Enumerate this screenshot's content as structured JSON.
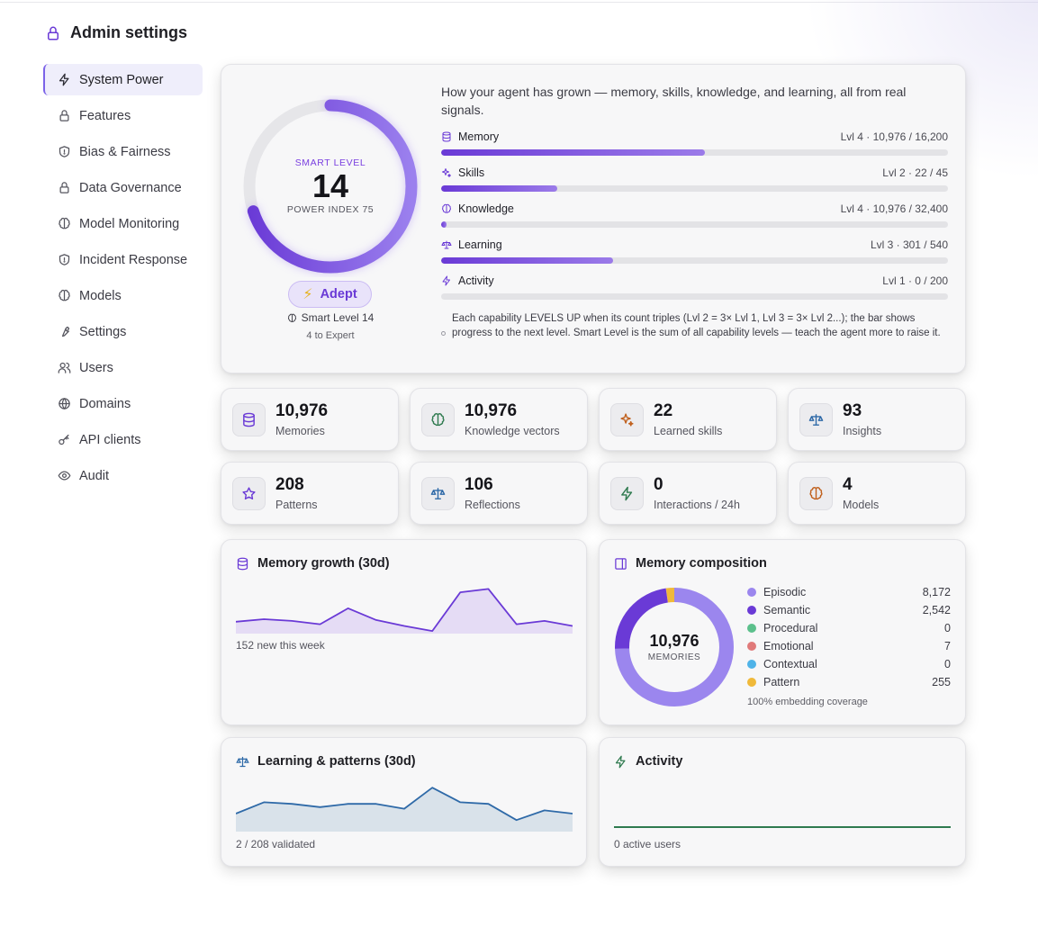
{
  "page": {
    "title": "Admin settings"
  },
  "sidebar": {
    "items": [
      {
        "label": "System Power",
        "icon": "bolt-icon",
        "active": true
      },
      {
        "label": "Features",
        "icon": "lock-icon"
      },
      {
        "label": "Bias & Fairness",
        "icon": "shield-icon"
      },
      {
        "label": "Data Governance",
        "icon": "lock-icon"
      },
      {
        "label": "Model Monitoring",
        "icon": "brain-icon"
      },
      {
        "label": "Incident Response",
        "icon": "shield-icon"
      },
      {
        "label": "Models",
        "icon": "brain-icon"
      },
      {
        "label": "Settings",
        "icon": "wrench-icon"
      },
      {
        "label": "Users",
        "icon": "users-icon"
      },
      {
        "label": "Domains",
        "icon": "globe-icon"
      },
      {
        "label": "API clients",
        "icon": "key-icon"
      },
      {
        "label": "Audit",
        "icon": "eye-icon"
      }
    ]
  },
  "hero": {
    "ring_label": "SMART LEVEL",
    "smart_level": "14",
    "power_index": "POWER INDEX 75",
    "ring_progress": 0.7,
    "badge": "Adept",
    "smart_sub": "Smart Level 14",
    "to_next": "4 to Expert",
    "description": "How your agent has grown — memory, skills, knowledge, and learning, all from real signals.",
    "capabilities": [
      {
        "name": "Memory",
        "icon": "database-icon",
        "value": "Lvl 4 · 10,976 / 16,200",
        "progress": 0.52
      },
      {
        "name": "Skills",
        "icon": "sparkles-icon",
        "value": "Lvl 2 · 22 / 45",
        "progress": 0.23
      },
      {
        "name": "Knowledge",
        "icon": "brain-icon",
        "value": "Lvl 4 · 10,976 / 32,400",
        "progress": 0.01
      },
      {
        "name": "Learning",
        "icon": "scale-icon",
        "value": "Lvl 3 · 301 / 540",
        "progress": 0.34
      },
      {
        "name": "Activity",
        "icon": "bolt-icon",
        "value": "Lvl 1 · 0 / 200",
        "progress": 0
      }
    ],
    "note": "Each capability LEVELS UP when its count triples (Lvl 2 = 3× Lvl 1, Lvl 3 = 3× Lvl 2...); the bar shows progress to the next level. Smart Level is the sum of all capability levels — teach the agent more to raise it."
  },
  "stats": [
    {
      "value": "10,976",
      "label": "Memories",
      "icon": "database-icon",
      "color": "#6a3ad6"
    },
    {
      "value": "10,976",
      "label": "Knowledge vectors",
      "icon": "brain-icon",
      "color": "#2f7a4f"
    },
    {
      "value": "22",
      "label": "Learned skills",
      "icon": "sparkles-icon",
      "color": "#c0601d"
    },
    {
      "value": "93",
      "label": "Insights",
      "icon": "scale-icon",
      "color": "#2f6aa8"
    },
    {
      "value": "208",
      "label": "Patterns",
      "icon": "star-icon",
      "color": "#6a3ad6"
    },
    {
      "value": "106",
      "label": "Reflections",
      "icon": "scale-icon",
      "color": "#2f6aa8"
    },
    {
      "value": "0",
      "label": "Interactions / 24h",
      "icon": "bolt-icon",
      "color": "#2f7a4f"
    },
    {
      "value": "4",
      "label": "Models",
      "icon": "brain-icon",
      "color": "#c0601d"
    }
  ],
  "memory_growth": {
    "title": "Memory growth (30d)",
    "caption": "152 new this week",
    "chart_data": {
      "type": "area",
      "values": [
        12,
        15,
        13,
        9,
        28,
        14,
        7,
        1,
        47,
        51,
        9,
        13,
        7
      ],
      "ylim": [
        0,
        60
      ]
    }
  },
  "composition": {
    "title": "Memory composition",
    "total": "10,976",
    "total_label": "MEMORIES",
    "coverage": "100% embedding coverage",
    "chart_data": {
      "type": "pie",
      "categories": [
        "Episodic",
        "Semantic",
        "Procedural",
        "Emotional",
        "Contextual",
        "Pattern"
      ],
      "values": [
        8172,
        2542,
        0,
        7,
        0,
        255
      ],
      "colors": [
        "#9b86ee",
        "#6a3ad6",
        "#5cc08c",
        "#e07a7a",
        "#4fb3e8",
        "#f0b93a"
      ]
    },
    "legend": [
      {
        "name": "Episodic",
        "value": "8,172",
        "color": "#9b86ee"
      },
      {
        "name": "Semantic",
        "value": "2,542",
        "color": "#6a3ad6"
      },
      {
        "name": "Procedural",
        "value": "0",
        "color": "#5cc08c"
      },
      {
        "name": "Emotional",
        "value": "7",
        "color": "#e07a7a"
      },
      {
        "name": "Contextual",
        "value": "0",
        "color": "#4fb3e8"
      },
      {
        "name": "Pattern",
        "value": "255",
        "color": "#f0b93a"
      }
    ]
  },
  "learning": {
    "title": "Learning & patterns (30d)",
    "caption": "2 / 208 validated",
    "chart_data": {
      "type": "area",
      "values": [
        10,
        17,
        16,
        14,
        16,
        16,
        13,
        26,
        17,
        16,
        6,
        12,
        10
      ],
      "ylim": [
        0,
        30
      ]
    }
  },
  "activity": {
    "title": "Activity",
    "caption": "0 active users",
    "chart_data": {
      "type": "line",
      "values": [
        0,
        0
      ],
      "ylim": [
        0,
        1
      ]
    }
  }
}
